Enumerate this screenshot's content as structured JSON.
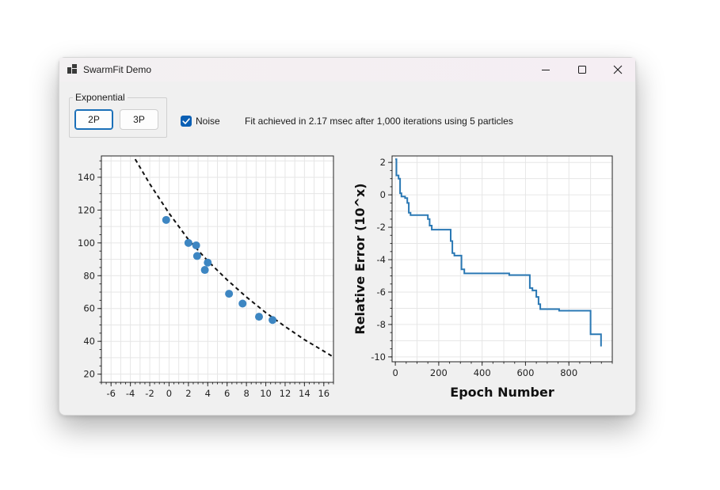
{
  "window": {
    "title": "SwarmFit Demo"
  },
  "controls": {
    "group_label": "Exponential",
    "buttons": [
      {
        "label": "2P",
        "active": true
      },
      {
        "label": "3P",
        "active": false
      }
    ],
    "noise_label": "Noise",
    "noise_checked": true,
    "status": "Fit achieved in 2.17 msec after 1,000 iterations using 5 particles"
  },
  "icons": {
    "app": "app-icon",
    "minimize": "minimize-icon",
    "maximize": "maximize-icon",
    "close": "close-icon",
    "check": "check-icon"
  },
  "colors": {
    "accent": "#0a5fb4",
    "points": "#3d86c2",
    "line": "#2a78b4"
  },
  "chart_data": [
    {
      "type": "scatter",
      "title": "",
      "xlabel": "",
      "ylabel": "",
      "xlim": [
        -7,
        17
      ],
      "ylim": [
        15,
        153
      ],
      "xticks": [
        -6,
        -4,
        -2,
        0,
        2,
        4,
        6,
        8,
        10,
        12,
        14,
        16
      ],
      "yticks": [
        20,
        40,
        60,
        80,
        100,
        120,
        140
      ],
      "points": [
        {
          "x": -0.3,
          "y": 114
        },
        {
          "x": 2.0,
          "y": 100
        },
        {
          "x": 2.8,
          "y": 98.5
        },
        {
          "x": 2.9,
          "y": 92
        },
        {
          "x": 3.7,
          "y": 83.5
        },
        {
          "x": 4.0,
          "y": 88
        },
        {
          "x": 6.2,
          "y": 69
        },
        {
          "x": 7.6,
          "y": 63
        },
        {
          "x": 9.3,
          "y": 55
        },
        {
          "x": 10.7,
          "y": 53
        }
      ],
      "fit_curve": {
        "style": "dashed",
        "points": [
          [
            -3.5,
            151
          ],
          [
            -2,
            136
          ],
          [
            0,
            118
          ],
          [
            2,
            102
          ],
          [
            4,
            89
          ],
          [
            6,
            77.5
          ],
          [
            8,
            67
          ],
          [
            10,
            57.5
          ],
          [
            12,
            49
          ],
          [
            14,
            41
          ],
          [
            16,
            34
          ],
          [
            16.9,
            30.8
          ]
        ]
      },
      "grid": true
    },
    {
      "type": "line",
      "title": "",
      "xlabel": "Epoch Number",
      "ylabel": "Relative Error (10^x)",
      "xlim": [
        -15,
        1000
      ],
      "ylim": [
        -10.3,
        2.4
      ],
      "xticks": [
        0,
        200,
        400,
        600,
        800
      ],
      "yticks": [
        2,
        0,
        -2,
        -4,
        -6,
        -8,
        -10
      ],
      "series": [
        {
          "values": [
            [
              0,
              2.2
            ],
            [
              5,
              2.2
            ],
            [
              5,
              1.2
            ],
            [
              15,
              1.2
            ],
            [
              15,
              1.0
            ],
            [
              22,
              1.0
            ],
            [
              22,
              0.1
            ],
            [
              28,
              0.1
            ],
            [
              28,
              -0.1
            ],
            [
              45,
              -0.1
            ],
            [
              45,
              -0.2
            ],
            [
              55,
              -0.2
            ],
            [
              55,
              -0.5
            ],
            [
              62,
              -0.5
            ],
            [
              62,
              -1.1
            ],
            [
              70,
              -1.1
            ],
            [
              70,
              -1.25
            ],
            [
              150,
              -1.25
            ],
            [
              150,
              -1.5
            ],
            [
              158,
              -1.5
            ],
            [
              158,
              -1.9
            ],
            [
              168,
              -1.9
            ],
            [
              168,
              -2.15
            ],
            [
              255,
              -2.15
            ],
            [
              255,
              -2.85
            ],
            [
              263,
              -2.85
            ],
            [
              263,
              -3.6
            ],
            [
              272,
              -3.6
            ],
            [
              272,
              -3.75
            ],
            [
              305,
              -3.75
            ],
            [
              305,
              -4.6
            ],
            [
              318,
              -4.6
            ],
            [
              318,
              -4.85
            ],
            [
              525,
              -4.85
            ],
            [
              525,
              -4.95
            ],
            [
              620,
              -4.95
            ],
            [
              620,
              -5.75
            ],
            [
              632,
              -5.75
            ],
            [
              632,
              -5.9
            ],
            [
              650,
              -5.9
            ],
            [
              650,
              -6.3
            ],
            [
              660,
              -6.3
            ],
            [
              660,
              -6.75
            ],
            [
              668,
              -6.75
            ],
            [
              668,
              -7.05
            ],
            [
              755,
              -7.05
            ],
            [
              755,
              -7.15
            ],
            [
              900,
              -7.15
            ],
            [
              900,
              -8.6
            ],
            [
              948,
              -8.6
            ],
            [
              948,
              -9.35
            ]
          ]
        }
      ],
      "grid": true
    }
  ]
}
